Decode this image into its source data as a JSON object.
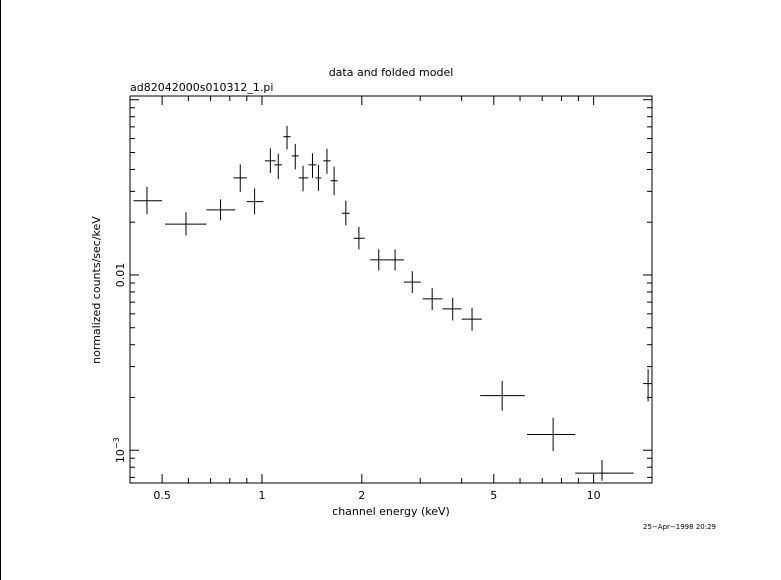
{
  "chart_data": {
    "type": "scatter",
    "title": "data and folded model",
    "subtitle": "ad82042000s010312_1.pi",
    "xlabel": "channel energy (keV)",
    "ylabel": "normalized counts/sec/keV",
    "x_scale": "log",
    "y_scale": "log",
    "xlim": [
      0.4,
      15.0
    ],
    "ylim": [
      0.00065,
      0.105
    ],
    "x_ticks": [
      {
        "value": 0.5,
        "label": "0.5"
      },
      {
        "value": 1,
        "label": "1"
      },
      {
        "value": 2,
        "label": "2"
      },
      {
        "value": 5,
        "label": "5"
      },
      {
        "value": 10,
        "label": "10"
      }
    ],
    "y_ticks": [
      {
        "value": 0.01,
        "label": "0.01"
      },
      {
        "value": 0.001,
        "label": "10",
        "exponent": "−3"
      }
    ],
    "grid": false,
    "legend": "none",
    "timestamp": "25−Apr−1998 20:29",
    "series": [
      {
        "points": [
          {
            "x": 0.45,
            "xlo": 0.41,
            "xhi": 0.5,
            "y": 0.0265,
            "ylo": 0.0222,
            "yhi": 0.0318
          },
          {
            "x": 0.59,
            "xlo": 0.51,
            "xhi": 0.68,
            "y": 0.0195,
            "ylo": 0.0168,
            "yhi": 0.0228
          },
          {
            "x": 0.75,
            "xlo": 0.68,
            "xhi": 0.83,
            "y": 0.0235,
            "ylo": 0.0205,
            "yhi": 0.027
          },
          {
            "x": 0.86,
            "xlo": 0.82,
            "xhi": 0.9,
            "y": 0.0358,
            "ylo": 0.0298,
            "yhi": 0.0428
          },
          {
            "x": 0.95,
            "xlo": 0.9,
            "xhi": 1.01,
            "y": 0.0262,
            "ylo": 0.0222,
            "yhi": 0.0312
          },
          {
            "x": 1.06,
            "xlo": 1.02,
            "xhi": 1.1,
            "y": 0.0448,
            "ylo": 0.0382,
            "yhi": 0.0528
          },
          {
            "x": 1.12,
            "xlo": 1.09,
            "xhi": 1.15,
            "y": 0.0425,
            "ylo": 0.0352,
            "yhi": 0.0492
          },
          {
            "x": 1.19,
            "xlo": 1.16,
            "xhi": 1.22,
            "y": 0.0615,
            "ylo": 0.052,
            "yhi": 0.071
          },
          {
            "x": 1.26,
            "xlo": 1.23,
            "xhi": 1.29,
            "y": 0.0478,
            "ylo": 0.04,
            "yhi": 0.056
          },
          {
            "x": 1.33,
            "xlo": 1.29,
            "xhi": 1.38,
            "y": 0.0358,
            "ylo": 0.03,
            "yhi": 0.042
          },
          {
            "x": 1.42,
            "xlo": 1.38,
            "xhi": 1.46,
            "y": 0.0425,
            "ylo": 0.0358,
            "yhi": 0.0495
          },
          {
            "x": 1.48,
            "xlo": 1.45,
            "xhi": 1.51,
            "y": 0.0358,
            "ylo": 0.0302,
            "yhi": 0.0425
          },
          {
            "x": 1.57,
            "xlo": 1.53,
            "xhi": 1.61,
            "y": 0.0448,
            "ylo": 0.0378,
            "yhi": 0.0525
          },
          {
            "x": 1.65,
            "xlo": 1.61,
            "xhi": 1.69,
            "y": 0.0345,
            "ylo": 0.0285,
            "yhi": 0.0415
          },
          {
            "x": 1.79,
            "xlo": 1.74,
            "xhi": 1.84,
            "y": 0.0225,
            "ylo": 0.0192,
            "yhi": 0.0265
          },
          {
            "x": 1.96,
            "xlo": 1.89,
            "xhi": 2.04,
            "y": 0.0162,
            "ylo": 0.014,
            "yhi": 0.0188
          },
          {
            "x": 2.25,
            "xlo": 2.12,
            "xhi": 2.36,
            "y": 0.0122,
            "ylo": 0.0106,
            "yhi": 0.014
          },
          {
            "x": 2.52,
            "xlo": 2.36,
            "xhi": 2.68,
            "y": 0.0122,
            "ylo": 0.0106,
            "yhi": 0.014
          },
          {
            "x": 2.84,
            "xlo": 2.68,
            "xhi": 3.01,
            "y": 0.0091,
            "ylo": 0.0079,
            "yhi": 0.0105
          },
          {
            "x": 3.26,
            "xlo": 3.05,
            "xhi": 3.5,
            "y": 0.0073,
            "ylo": 0.0063,
            "yhi": 0.0084
          },
          {
            "x": 3.76,
            "xlo": 3.5,
            "xhi": 4.0,
            "y": 0.0064,
            "ylo": 0.0055,
            "yhi": 0.0074
          },
          {
            "x": 4.3,
            "xlo": 4.0,
            "xhi": 4.6,
            "y": 0.0056,
            "ylo": 0.0048,
            "yhi": 0.0065
          },
          {
            "x": 5.3,
            "xlo": 4.55,
            "xhi": 6.2,
            "y": 0.00205,
            "ylo": 0.00168,
            "yhi": 0.00248
          },
          {
            "x": 7.55,
            "xlo": 6.3,
            "xhi": 8.8,
            "y": 0.00123,
            "ylo": 0.00099,
            "yhi": 0.00153
          },
          {
            "x": 10.6,
            "xlo": 8.8,
            "xhi": 13.2,
            "y": 0.00074,
            "ylo": 0.00067,
            "yhi": 0.00088
          },
          {
            "x": 14.6,
            "xlo": 14.1,
            "xhi": 15.0,
            "y": 0.0024,
            "ylo": 0.0019,
            "yhi": 0.0029
          }
        ]
      }
    ]
  }
}
